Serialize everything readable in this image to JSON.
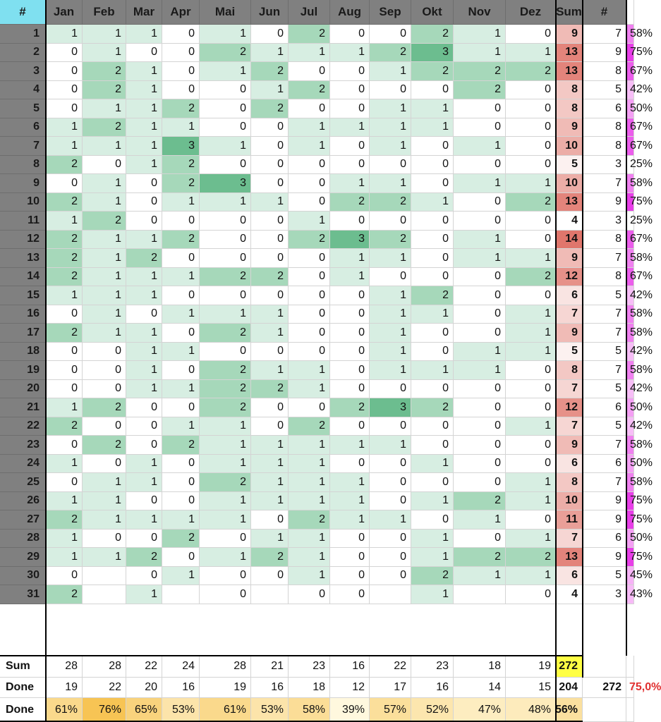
{
  "headers": {
    "hash": "#",
    "months": [
      "Jan",
      "Feb",
      "Mar",
      "Apr",
      "Mai",
      "Jun",
      "Jul",
      "Aug",
      "Sep",
      "Okt",
      "Nov",
      "Dez"
    ],
    "sum": "Sum",
    "count": "#"
  },
  "rows": [
    {
      "day": "1",
      "values": [
        1,
        1,
        1,
        0,
        1,
        0,
        2,
        0,
        0,
        2,
        1,
        0
      ],
      "sum": 9,
      "count": 7,
      "pct": "58%"
    },
    {
      "day": "2",
      "values": [
        0,
        1,
        0,
        0,
        2,
        1,
        1,
        1,
        2,
        3,
        1,
        1
      ],
      "sum": 13,
      "count": 9,
      "pct": "75%"
    },
    {
      "day": "3",
      "values": [
        0,
        2,
        1,
        0,
        1,
        2,
        0,
        0,
        1,
        2,
        2,
        2
      ],
      "sum": 13,
      "count": 8,
      "pct": "67%"
    },
    {
      "day": "4",
      "values": [
        0,
        2,
        1,
        0,
        0,
        1,
        2,
        0,
        0,
        0,
        2,
        0
      ],
      "sum": 8,
      "count": 5,
      "pct": "42%"
    },
    {
      "day": "5",
      "values": [
        0,
        1,
        1,
        2,
        0,
        2,
        0,
        0,
        1,
        1,
        0,
        0
      ],
      "sum": 8,
      "count": 6,
      "pct": "50%"
    },
    {
      "day": "6",
      "values": [
        1,
        2,
        1,
        1,
        0,
        0,
        1,
        1,
        1,
        1,
        0,
        0
      ],
      "sum": 9,
      "count": 8,
      "pct": "67%"
    },
    {
      "day": "7",
      "values": [
        1,
        1,
        1,
        3,
        1,
        0,
        1,
        0,
        1,
        0,
        1,
        0
      ],
      "sum": 10,
      "count": 8,
      "pct": "67%"
    },
    {
      "day": "8",
      "values": [
        2,
        0,
        1,
        2,
        0,
        0,
        0,
        0,
        0,
        0,
        0,
        0
      ],
      "sum": 5,
      "count": 3,
      "pct": "25%"
    },
    {
      "day": "9",
      "values": [
        0,
        1,
        0,
        2,
        3,
        0,
        0,
        1,
        1,
        0,
        1,
        1
      ],
      "sum": 10,
      "count": 7,
      "pct": "58%"
    },
    {
      "day": "10",
      "values": [
        2,
        1,
        0,
        1,
        1,
        1,
        0,
        2,
        2,
        1,
        0,
        2
      ],
      "sum": 13,
      "count": 9,
      "pct": "75%"
    },
    {
      "day": "11",
      "values": [
        1,
        2,
        0,
        0,
        0,
        0,
        1,
        0,
        0,
        0,
        0,
        0
      ],
      "sum": 4,
      "count": 3,
      "pct": "25%"
    },
    {
      "day": "12",
      "values": [
        2,
        1,
        1,
        2,
        0,
        0,
        2,
        3,
        2,
        0,
        1,
        0
      ],
      "sum": 14,
      "count": 8,
      "pct": "67%"
    },
    {
      "day": "13",
      "values": [
        2,
        1,
        2,
        0,
        0,
        0,
        0,
        1,
        1,
        0,
        1,
        1
      ],
      "sum": 9,
      "count": 7,
      "pct": "58%"
    },
    {
      "day": "14",
      "values": [
        2,
        1,
        1,
        1,
        2,
        2,
        0,
        1,
        0,
        0,
        0,
        2
      ],
      "sum": 12,
      "count": 8,
      "pct": "67%"
    },
    {
      "day": "15",
      "values": [
        1,
        1,
        1,
        0,
        0,
        0,
        0,
        0,
        1,
        2,
        0,
        0
      ],
      "sum": 6,
      "count": 5,
      "pct": "42%"
    },
    {
      "day": "16",
      "values": [
        0,
        1,
        0,
        1,
        1,
        1,
        0,
        0,
        1,
        1,
        0,
        1
      ],
      "sum": 7,
      "count": 7,
      "pct": "58%"
    },
    {
      "day": "17",
      "values": [
        2,
        1,
        1,
        0,
        2,
        1,
        0,
        0,
        1,
        0,
        0,
        1
      ],
      "sum": 9,
      "count": 7,
      "pct": "58%"
    },
    {
      "day": "18",
      "values": [
        0,
        0,
        1,
        1,
        0,
        0,
        0,
        0,
        1,
        0,
        1,
        1
      ],
      "sum": 5,
      "count": 5,
      "pct": "42%"
    },
    {
      "day": "19",
      "values": [
        0,
        0,
        1,
        0,
        2,
        1,
        1,
        0,
        1,
        1,
        1,
        0
      ],
      "sum": 8,
      "count": 7,
      "pct": "58%"
    },
    {
      "day": "20",
      "values": [
        0,
        0,
        1,
        1,
        2,
        2,
        1,
        0,
        0,
        0,
        0,
        0
      ],
      "sum": 7,
      "count": 5,
      "pct": "42%"
    },
    {
      "day": "21",
      "values": [
        1,
        2,
        0,
        0,
        2,
        0,
        0,
        2,
        3,
        2,
        0,
        0
      ],
      "sum": 12,
      "count": 6,
      "pct": "50%"
    },
    {
      "day": "22",
      "values": [
        2,
        0,
        0,
        1,
        1,
        0,
        2,
        0,
        0,
        0,
        0,
        1
      ],
      "sum": 7,
      "count": 5,
      "pct": "42%"
    },
    {
      "day": "23",
      "values": [
        0,
        2,
        0,
        2,
        1,
        1,
        1,
        1,
        1,
        0,
        0,
        0
      ],
      "sum": 9,
      "count": 7,
      "pct": "58%"
    },
    {
      "day": "24",
      "values": [
        1,
        0,
        1,
        0,
        1,
        1,
        1,
        0,
        0,
        1,
        0,
        0
      ],
      "sum": 6,
      "count": 6,
      "pct": "50%"
    },
    {
      "day": "25",
      "values": [
        0,
        1,
        1,
        0,
        2,
        1,
        1,
        1,
        0,
        0,
        0,
        1
      ],
      "sum": 8,
      "count": 7,
      "pct": "58%"
    },
    {
      "day": "26",
      "values": [
        1,
        1,
        0,
        0,
        1,
        1,
        1,
        1,
        0,
        1,
        2,
        1
      ],
      "sum": 10,
      "count": 9,
      "pct": "75%"
    },
    {
      "day": "27",
      "values": [
        2,
        1,
        1,
        1,
        1,
        0,
        2,
        1,
        1,
        0,
        1,
        0
      ],
      "sum": 11,
      "count": 9,
      "pct": "75%"
    },
    {
      "day": "28",
      "values": [
        1,
        0,
        0,
        2,
        0,
        1,
        1,
        0,
        0,
        1,
        0,
        1
      ],
      "sum": 7,
      "count": 6,
      "pct": "50%"
    },
    {
      "day": "29",
      "values": [
        1,
        1,
        2,
        0,
        1,
        2,
        1,
        0,
        0,
        1,
        2,
        2
      ],
      "sum": 13,
      "count": 9,
      "pct": "75%"
    },
    {
      "day": "30",
      "values": [
        0,
        null,
        0,
        1,
        0,
        0,
        1,
        0,
        0,
        2,
        1,
        1
      ],
      "sum": 6,
      "count": 5,
      "pct": "45%"
    },
    {
      "day": "31",
      "values": [
        2,
        null,
        1,
        null,
        0,
        null,
        0,
        0,
        null,
        1,
        null,
        0
      ],
      "sum": 4,
      "count": 3,
      "pct": "43%"
    }
  ],
  "footer": {
    "sum_label": "Sum",
    "sum_values": [
      28,
      28,
      22,
      24,
      28,
      21,
      23,
      16,
      22,
      23,
      18,
      19
    ],
    "sum_total": "272",
    "done_label": "Done",
    "done_values": [
      19,
      22,
      20,
      16,
      19,
      16,
      18,
      12,
      17,
      16,
      14,
      15
    ],
    "done_total": "204",
    "done_count": "272",
    "done_ratio": "75,0%",
    "done_pct_label": "Done",
    "done_pcts": [
      "61%",
      "76%",
      "65%",
      "53%",
      "61%",
      "53%",
      "58%",
      "39%",
      "57%",
      "52%",
      "47%",
      "48%"
    ],
    "done_pct_total": "56%"
  },
  "colors": {
    "header_gray": "#808080",
    "header_hash": "#7fe0f0",
    "green_1": "#d7eee2",
    "green_2": "#a6d8ba",
    "green_3": "#6cbd8f",
    "sum_highlight": "#ffff44",
    "ratio_red": "#e03030",
    "pink_max": "#e83ee8"
  }
}
